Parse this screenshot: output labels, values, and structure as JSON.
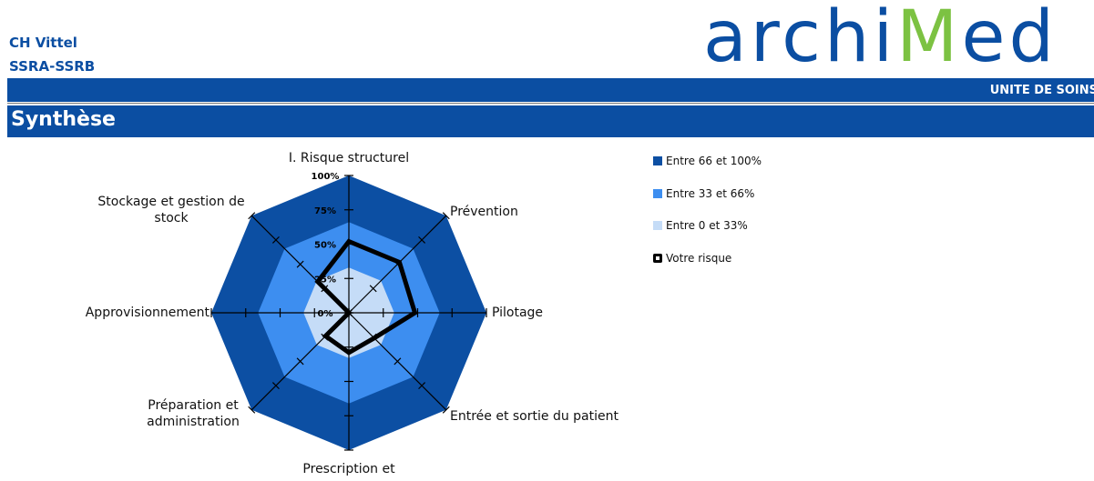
{
  "header": {
    "line1": "CH Vittel",
    "line2": "SSRA-SSRB",
    "logo_left": "archi",
    "logo_m": "M",
    "logo_right": "ed",
    "unit": "UNITE DE SOINS",
    "section": "Synthèse"
  },
  "chart_data": {
    "type": "radar",
    "categories": [
      "I. Risque structurel",
      "Prévention",
      "Pilotage",
      "Entrée et sortie du patient",
      "Prescription et",
      "Préparation et administration",
      "Approvisionnement",
      "Stockage et gestion de stock"
    ],
    "ylim": [
      0,
      100
    ],
    "yticks": [
      {
        "value": 0,
        "label": "0%"
      },
      {
        "value": 25,
        "label": "25%"
      },
      {
        "value": 50,
        "label": "50%"
      },
      {
        "value": 75,
        "label": "75%"
      },
      {
        "value": 100,
        "label": "100%"
      }
    ],
    "series": [
      {
        "name": "Entre 66 et 100%",
        "color": "#0c4fa3",
        "fill": true,
        "values": [
          100,
          100,
          100,
          100,
          100,
          100,
          100,
          100
        ]
      },
      {
        "name": "Entre 33 et 66%",
        "color": "#3d8ef0",
        "fill": true,
        "values": [
          66,
          66,
          66,
          66,
          66,
          66,
          66,
          66
        ]
      },
      {
        "name": "Entre 0 et 33%",
        "color": "#c5dcf7",
        "fill": true,
        "values": [
          33,
          33,
          33,
          33,
          33,
          33,
          33,
          33
        ]
      },
      {
        "name": "Votre risque",
        "color": "#000000",
        "fill": false,
        "values": [
          52,
          52,
          48,
          26,
          29,
          24,
          0,
          32
        ]
      }
    ]
  }
}
